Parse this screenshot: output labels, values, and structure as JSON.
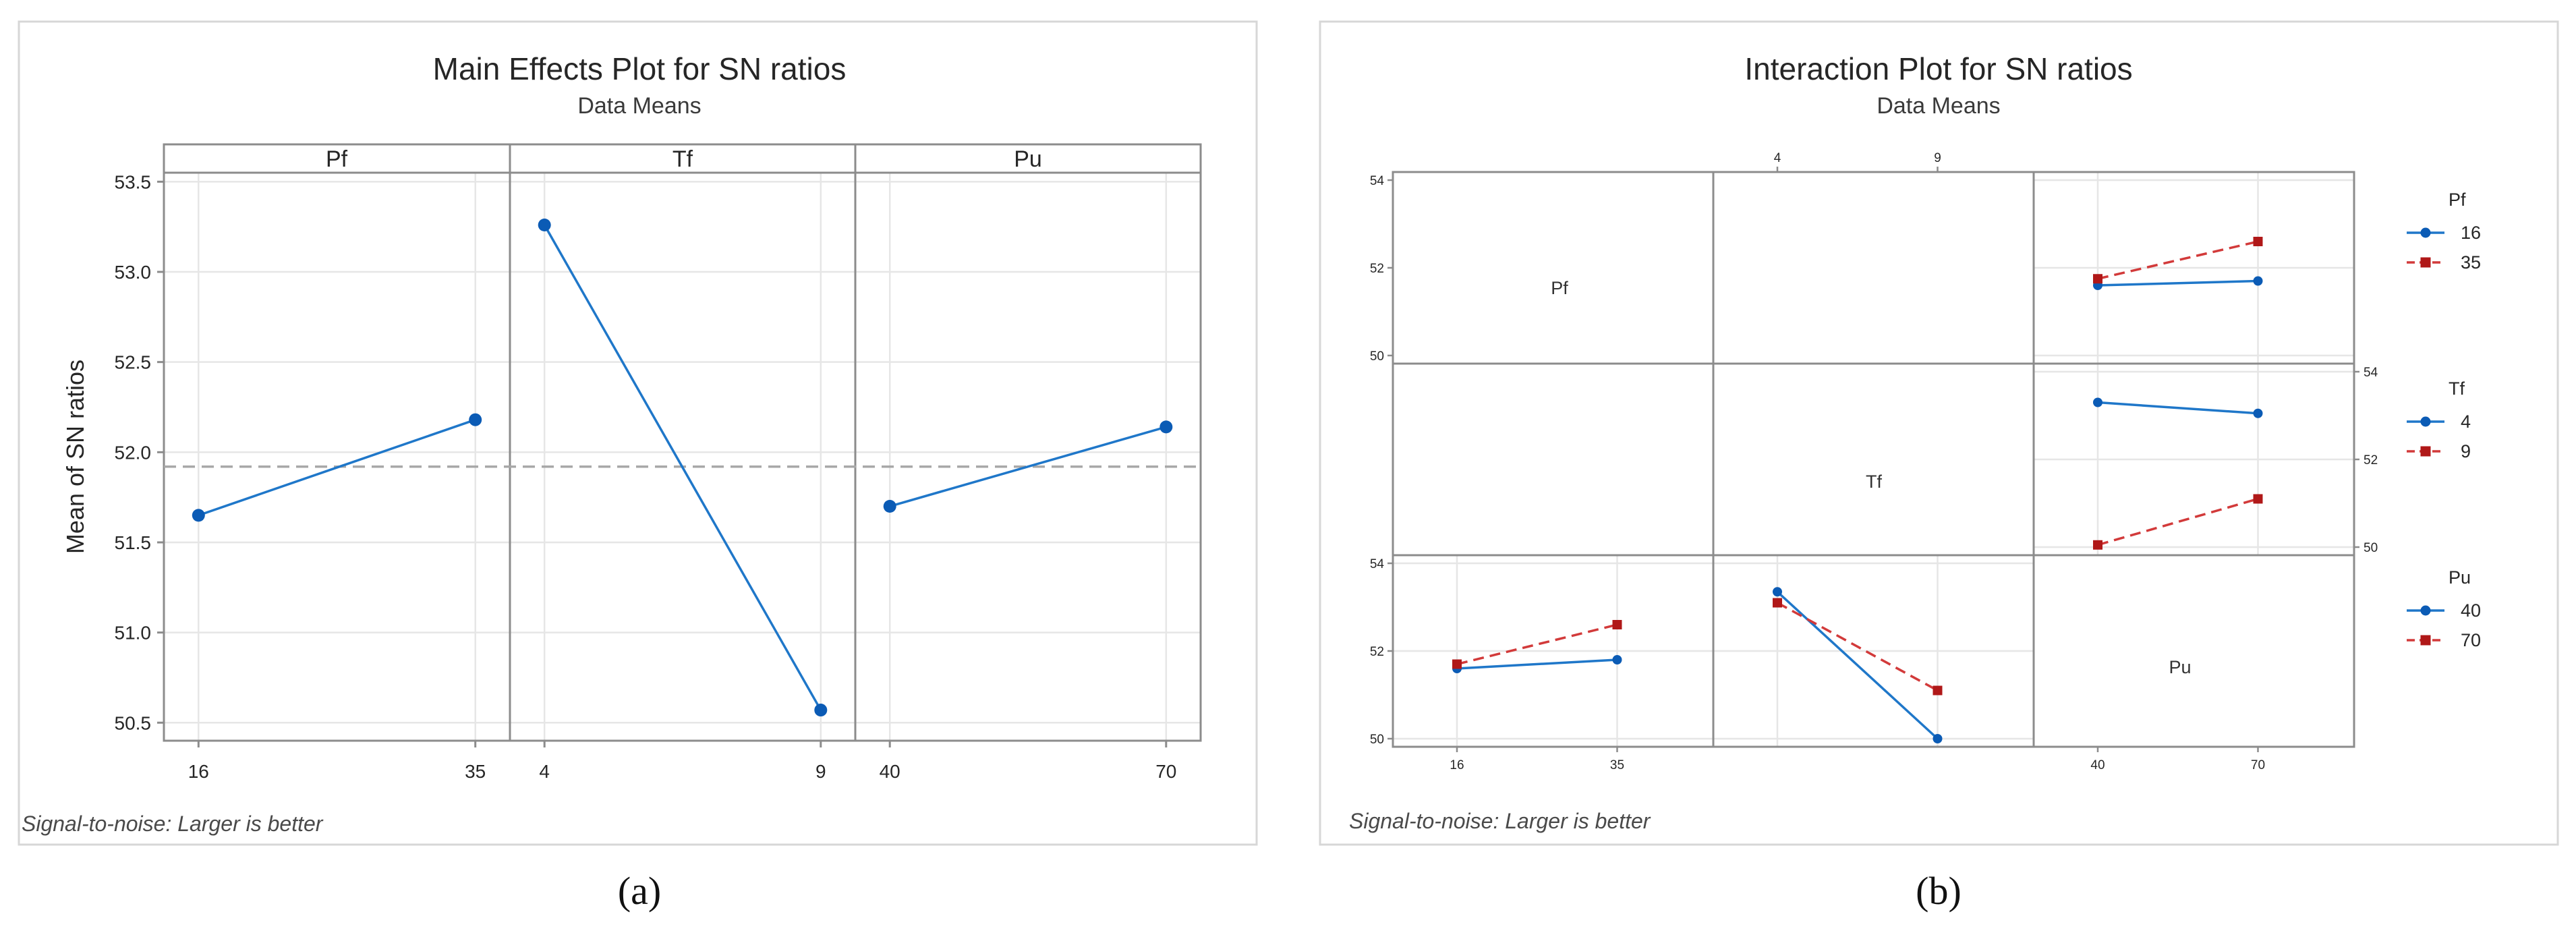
{
  "colors": {
    "series1": "#1f77c9",
    "series1_marker": "#0b5bb5",
    "series2": "#d23a3a",
    "series2_marker": "#b01818",
    "reference_line": "#a8a8a8"
  },
  "caption_a": "(a)",
  "caption_b": "(b)",
  "chart_data": [
    {
      "type": "line",
      "title": "Main Effects Plot for SN ratios",
      "subtitle": "Data Means",
      "ylabel": "Mean of SN ratios",
      "ylim": [
        50.4,
        53.55
      ],
      "yticks": [
        "50.5",
        "51.0",
        "51.5",
        "52.0",
        "52.5",
        "53.0",
        "53.5"
      ],
      "reference_mean": 51.92,
      "footnote": "Signal-to-noise: Larger is better",
      "panels": [
        {
          "factor": "Pf",
          "levels": [
            "16",
            "35"
          ],
          "values": [
            51.65,
            52.18
          ]
        },
        {
          "factor": "Tf",
          "levels": [
            "4",
            "9"
          ],
          "values": [
            53.26,
            50.57
          ]
        },
        {
          "factor": "Pu",
          "levels": [
            "40",
            "70"
          ],
          "values": [
            51.7,
            52.14
          ]
        }
      ]
    },
    {
      "type": "line",
      "title": "Interaction Plot for SN ratios",
      "subtitle": "Data Means",
      "footnote": "Signal-to-noise: Larger is better",
      "factors": [
        "Pf",
        "Tf",
        "Pu"
      ],
      "levels": {
        "Pf": [
          "16",
          "35"
        ],
        "Tf": [
          "4",
          "9"
        ],
        "Pu": [
          "40",
          "70"
        ]
      },
      "ylim": [
        50,
        54
      ],
      "yticks": [
        "50",
        "52",
        "54"
      ],
      "top_axis_ticks": [
        "4",
        "9"
      ],
      "legends": [
        {
          "title": "Pf",
          "entries": [
            "16",
            "35"
          ]
        },
        {
          "title": "Tf",
          "entries": [
            "4",
            "9"
          ]
        },
        {
          "title": "Pu",
          "entries": [
            "40",
            "70"
          ]
        }
      ],
      "cells": [
        {
          "row": "Pf",
          "x_factor": "Pu",
          "series": [
            {
              "name": "16",
              "values": [
                51.6,
                51.7
              ]
            },
            {
              "name": "35",
              "values": [
                51.75,
                52.6
              ]
            }
          ]
        },
        {
          "row": "Tf",
          "x_factor": "Pu",
          "series": [
            {
              "name": "4",
              "values": [
                53.3,
                53.05
              ]
            },
            {
              "name": "9",
              "values": [
                50.05,
                51.1
              ]
            }
          ]
        },
        {
          "row": "Pu",
          "x_factor": "Pf",
          "series": [
            {
              "name": "40",
              "values": [
                51.6,
                51.8
              ]
            },
            {
              "name": "70",
              "values": [
                51.7,
                52.6
              ]
            }
          ]
        },
        {
          "row": "Pu",
          "x_factor": "Tf",
          "series": [
            {
              "name": "40",
              "values": [
                53.35,
                50.0
              ]
            },
            {
              "name": "70",
              "values": [
                53.1,
                51.1
              ]
            }
          ]
        }
      ]
    }
  ]
}
